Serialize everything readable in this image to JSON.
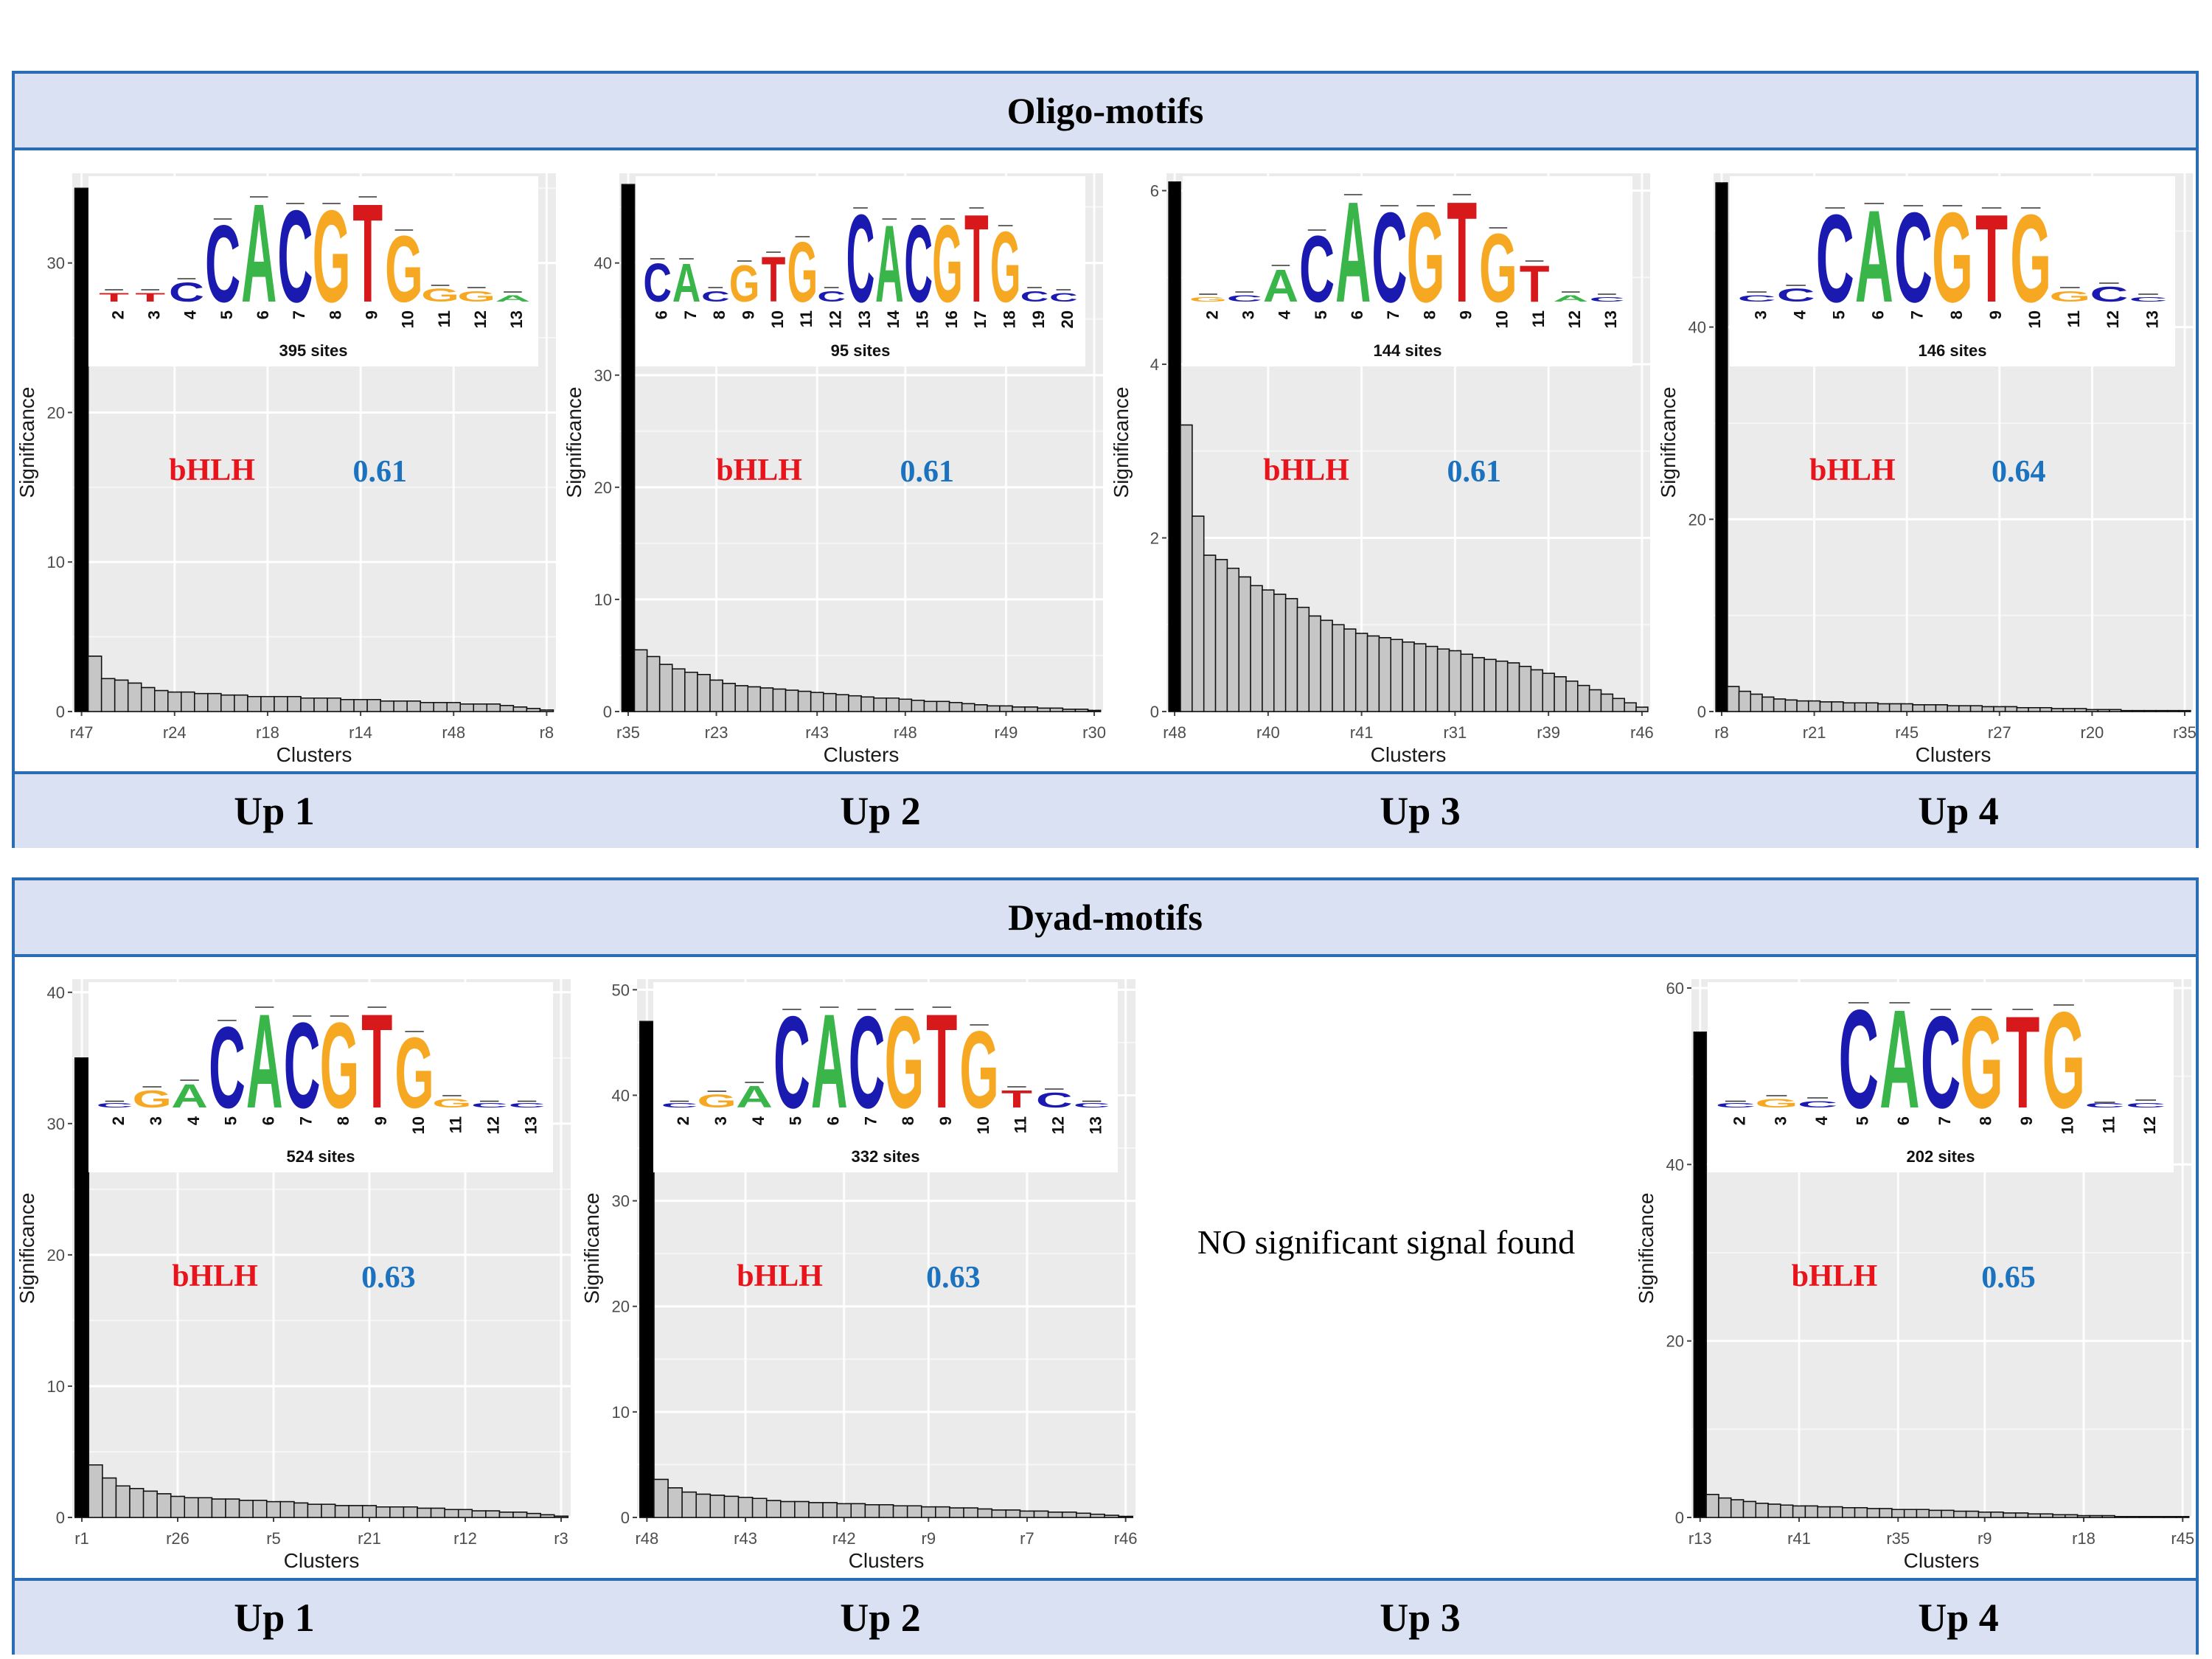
{
  "sections": [
    {
      "title": "Oligo-motifs",
      "labels": [
        "Up 1",
        "Up 2",
        "Up 3",
        "Up 4"
      ]
    },
    {
      "title": "Dyad-motifs",
      "labels": [
        "Up 1",
        "Up 2",
        "Up 3",
        "Up 4"
      ],
      "no_signal_text": "NO significant signal found"
    }
  ],
  "colors": {
    "A": "#39b54a",
    "C": "#1a1ab0",
    "G": "#f7a823",
    "T": "#d7191c",
    "family": "#e8141b",
    "score": "#1b72bf",
    "frame": "#2a6db5",
    "band": "#d9e1f2"
  },
  "chart_data": [
    {
      "type": "bar",
      "section": "Oligo-motifs",
      "panel": "Up 1",
      "xlabel": "Clusters",
      "ylabel": "Significance",
      "ylim": [
        0,
        36
      ],
      "yticks": [
        0,
        10,
        20,
        30
      ],
      "xtick_labels": [
        "r47",
        "r24",
        "r18",
        "r14",
        "r48",
        "r8"
      ],
      "values": [
        35,
        3.7,
        2.2,
        2.1,
        1.9,
        1.6,
        1.4,
        1.3,
        1.3,
        1.2,
        1.2,
        1.1,
        1.1,
        1.0,
        1.0,
        1.0,
        1.0,
        0.9,
        0.9,
        0.9,
        0.8,
        0.8,
        0.8,
        0.7,
        0.7,
        0.7,
        0.6,
        0.6,
        0.6,
        0.5,
        0.5,
        0.5,
        0.4,
        0.3,
        0.2,
        0.1
      ],
      "logo": {
        "sites": "395 sites",
        "positions": [
          "2",
          "3",
          "4",
          "5",
          "6",
          "7",
          "8",
          "9",
          "10",
          "11",
          "12",
          "13"
        ],
        "letters": [
          "T",
          "T",
          "C",
          "C",
          "A",
          "C",
          "G",
          "T",
          "G",
          "G",
          "G",
          "A"
        ],
        "heights": [
          0.08,
          0.08,
          0.18,
          0.72,
          0.92,
          0.86,
          0.86,
          0.92,
          0.62,
          0.12,
          0.1,
          0.06
        ]
      },
      "family": "bHLH",
      "score": "0.61"
    },
    {
      "type": "bar",
      "section": "Oligo-motifs",
      "panel": "Up 2",
      "xlabel": "Clusters",
      "ylabel": "Significance",
      "ylim": [
        0,
        48
      ],
      "yticks": [
        0,
        10,
        20,
        30,
        40
      ],
      "xtick_labels": [
        "r35",
        "r23",
        "r43",
        "r48",
        "r49",
        "r30"
      ],
      "values": [
        47,
        5.5,
        4.9,
        4.2,
        3.8,
        3.5,
        3.3,
        2.8,
        2.5,
        2.3,
        2.2,
        2.1,
        2.0,
        1.9,
        1.8,
        1.7,
        1.6,
        1.5,
        1.4,
        1.3,
        1.2,
        1.2,
        1.1,
        1.0,
        0.9,
        0.9,
        0.8,
        0.7,
        0.6,
        0.5,
        0.5,
        0.4,
        0.4,
        0.3,
        0.3,
        0.2,
        0.2,
        0.1
      ],
      "logo": {
        "sites": "95 sites",
        "positions": [
          "6",
          "7",
          "8",
          "9",
          "10",
          "11",
          "12",
          "13",
          "14",
          "15",
          "16",
          "17",
          "18",
          "19",
          "20"
        ],
        "letters": [
          "C",
          "A",
          "C",
          "G",
          "T",
          "G",
          "C",
          "C",
          "A",
          "C",
          "G",
          "T",
          "G",
          "C",
          "C"
        ],
        "heights": [
          0.36,
          0.36,
          0.1,
          0.34,
          0.42,
          0.56,
          0.1,
          0.82,
          0.72,
          0.72,
          0.72,
          0.82,
          0.66,
          0.1,
          0.08
        ]
      },
      "family": "bHLH",
      "score": "0.61"
    },
    {
      "type": "bar",
      "section": "Oligo-motifs",
      "panel": "Up 3",
      "xlabel": "Clusters",
      "ylabel": "Significance",
      "ylim": [
        0,
        6.2
      ],
      "yticks": [
        0,
        2,
        4,
        6
      ],
      "xtick_labels": [
        "r48",
        "r40",
        "r41",
        "r31",
        "r39",
        "r46"
      ],
      "values": [
        6.1,
        3.3,
        2.25,
        1.8,
        1.75,
        1.65,
        1.55,
        1.45,
        1.4,
        1.35,
        1.3,
        1.2,
        1.1,
        1.05,
        1.0,
        0.95,
        0.9,
        0.87,
        0.85,
        0.83,
        0.8,
        0.78,
        0.75,
        0.72,
        0.7,
        0.66,
        0.62,
        0.6,
        0.58,
        0.56,
        0.52,
        0.48,
        0.44,
        0.4,
        0.35,
        0.3,
        0.25,
        0.2,
        0.15,
        0.1,
        0.05
      ],
      "logo": {
        "sites": "144 sites",
        "positions": [
          "2",
          "3",
          "4",
          "5",
          "6",
          "7",
          "8",
          "9",
          "10",
          "11",
          "12",
          "13"
        ],
        "letters": [
          "G",
          "C",
          "A",
          "C",
          "A",
          "C",
          "G",
          "T",
          "G",
          "T",
          "A",
          "C"
        ],
        "heights": [
          0.04,
          0.06,
          0.3,
          0.62,
          0.94,
          0.84,
          0.84,
          0.94,
          0.64,
          0.34,
          0.06,
          0.04
        ]
      },
      "family": "bHLH",
      "score": "0.61"
    },
    {
      "type": "bar",
      "section": "Oligo-motifs",
      "panel": "Up 4",
      "xlabel": "Clusters",
      "ylabel": "Significance",
      "ylim": [
        0,
        56
      ],
      "yticks": [
        0,
        20,
        40
      ],
      "xtick_labels": [
        "r8",
        "r21",
        "r45",
        "r27",
        "r20",
        "r35"
      ],
      "values": [
        55,
        2.6,
        2.1,
        1.8,
        1.5,
        1.3,
        1.2,
        1.1,
        1.1,
        1.0,
        1.0,
        0.9,
        0.9,
        0.9,
        0.8,
        0.8,
        0.8,
        0.7,
        0.7,
        0.7,
        0.6,
        0.6,
        0.6,
        0.5,
        0.5,
        0.5,
        0.4,
        0.4,
        0.4,
        0.3,
        0.3,
        0.3,
        0.2,
        0.2,
        0.2,
        0.1,
        0.1,
        0.1,
        0.1,
        0.1,
        0.1
      ],
      "logo": {
        "sites": "146 sites",
        "positions": [
          "3",
          "4",
          "5",
          "6",
          "7",
          "8",
          "9",
          "10",
          "11",
          "12",
          "13"
        ],
        "letters": [
          "C",
          "C",
          "C",
          "A",
          "C",
          "G",
          "T",
          "G",
          "G",
          "C",
          "C"
        ],
        "heights": [
          0.06,
          0.12,
          0.82,
          0.86,
          0.84,
          0.84,
          0.82,
          0.82,
          0.1,
          0.14,
          0.04
        ]
      },
      "family": "bHLH",
      "score": "0.64"
    },
    {
      "type": "bar",
      "section": "Dyad-motifs",
      "panel": "Up 1",
      "xlabel": "Clusters",
      "ylabel": "Significance",
      "ylim": [
        0,
        41
      ],
      "yticks": [
        0,
        10,
        20,
        30,
        40
      ],
      "xtick_labels": [
        "r1",
        "r26",
        "r5",
        "r21",
        "r12",
        "r3"
      ],
      "values": [
        35,
        4.0,
        3.0,
        2.4,
        2.2,
        2.0,
        1.8,
        1.6,
        1.5,
        1.5,
        1.4,
        1.4,
        1.3,
        1.3,
        1.2,
        1.2,
        1.1,
        1.0,
        1.0,
        0.9,
        0.9,
        0.9,
        0.8,
        0.8,
        0.8,
        0.7,
        0.7,
        0.6,
        0.6,
        0.5,
        0.5,
        0.4,
        0.4,
        0.3,
        0.2,
        0.1
      ],
      "logo": {
        "sites": "524 sites",
        "positions": [
          "2",
          "3",
          "4",
          "5",
          "6",
          "7",
          "8",
          "9",
          "10",
          "11",
          "12",
          "13"
        ],
        "letters": [
          "C",
          "G",
          "A",
          "C",
          "A",
          "C",
          "G",
          "T",
          "G",
          "G",
          "C",
          "C"
        ],
        "heights": [
          0.03,
          0.16,
          0.22,
          0.76,
          0.88,
          0.8,
          0.8,
          0.88,
          0.66,
          0.08,
          0.03,
          0.03
        ]
      },
      "family": "bHLH",
      "score": "0.63"
    },
    {
      "type": "bar",
      "section": "Dyad-motifs",
      "panel": "Up 2",
      "xlabel": "Clusters",
      "ylabel": "Significance",
      "ylim": [
        0,
        51
      ],
      "yticks": [
        0,
        10,
        20,
        30,
        40,
        50
      ],
      "xtick_labels": [
        "r48",
        "r43",
        "r42",
        "r9",
        "r7",
        "r46"
      ],
      "values": [
        47,
        3.6,
        2.8,
        2.4,
        2.2,
        2.1,
        2.0,
        1.9,
        1.8,
        1.6,
        1.5,
        1.5,
        1.4,
        1.4,
        1.3,
        1.3,
        1.2,
        1.2,
        1.1,
        1.1,
        1.0,
        1.0,
        0.9,
        0.9,
        0.8,
        0.7,
        0.7,
        0.6,
        0.6,
        0.5,
        0.5,
        0.4,
        0.3,
        0.2,
        0.1
      ],
      "logo": {
        "sites": "332 sites",
        "positions": [
          "2",
          "3",
          "4",
          "5",
          "6",
          "7",
          "8",
          "9",
          "10",
          "11",
          "12",
          "13"
        ],
        "letters": [
          "C",
          "G",
          "A",
          "C",
          "A",
          "C",
          "G",
          "T",
          "G",
          "T",
          "C",
          "C"
        ],
        "heights": [
          0.03,
          0.12,
          0.2,
          0.86,
          0.88,
          0.86,
          0.86,
          0.88,
          0.72,
          0.16,
          0.14,
          0.03
        ]
      },
      "family": "bHLH",
      "score": "0.63"
    },
    {
      "type": "bar",
      "section": "Dyad-motifs",
      "panel": "Up 4",
      "xlabel": "Clusters",
      "ylabel": "Significance",
      "ylim": [
        0,
        61
      ],
      "yticks": [
        0,
        20,
        40,
        60
      ],
      "xtick_labels": [
        "r13",
        "r41",
        "r35",
        "r9",
        "r18",
        "r45"
      ],
      "values": [
        55,
        2.6,
        2.2,
        2.0,
        1.8,
        1.6,
        1.5,
        1.4,
        1.3,
        1.3,
        1.2,
        1.2,
        1.1,
        1.1,
        1.0,
        1.0,
        0.9,
        0.9,
        0.9,
        0.8,
        0.8,
        0.7,
        0.7,
        0.6,
        0.6,
        0.5,
        0.5,
        0.4,
        0.4,
        0.3,
        0.3,
        0.2,
        0.2,
        0.2,
        0.1,
        0.1,
        0.1,
        0.1,
        0.1,
        0.1
      ],
      "logo": {
        "sites": "202 sites",
        "positions": [
          "2",
          "3",
          "4",
          "5",
          "6",
          "7",
          "8",
          "9",
          "10",
          "11",
          "12"
        ],
        "letters": [
          "C",
          "G",
          "C",
          "C",
          "A",
          "C",
          "G",
          "T",
          "G",
          "C",
          "C"
        ],
        "heights": [
          0.03,
          0.08,
          0.06,
          0.92,
          0.92,
          0.86,
          0.86,
          0.86,
          0.9,
          0.02,
          0.04
        ]
      },
      "family": "bHLH",
      "score": "0.65"
    }
  ]
}
